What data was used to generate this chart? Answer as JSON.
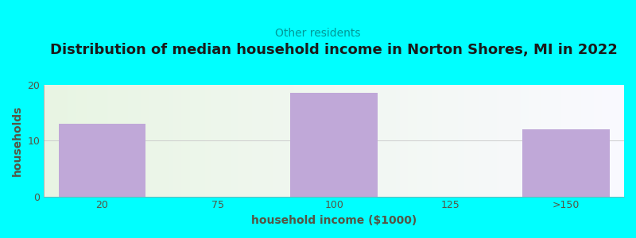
{
  "title": "Distribution of median household income in Norton Shores, MI in 2022",
  "subtitle": "Other residents",
  "xlabel": "household income ($1000)",
  "ylabel": "households",
  "categories": [
    "20",
    "75",
    "100",
    "125",
    ">150"
  ],
  "values": [
    13,
    0,
    18.5,
    0,
    12
  ],
  "bar_color": "#c0a8d8",
  "bg_outer": "#00ffff",
  "title_color": "#1a1a1a",
  "subtitle_color": "#009999",
  "axis_label_color": "#555544",
  "tick_color": "#555544",
  "ylim": [
    0,
    20
  ],
  "yticks": [
    0,
    10,
    20
  ],
  "bar_width": 0.75,
  "title_fontsize": 13,
  "subtitle_fontsize": 10,
  "label_fontsize": 10,
  "tick_fontsize": 9
}
